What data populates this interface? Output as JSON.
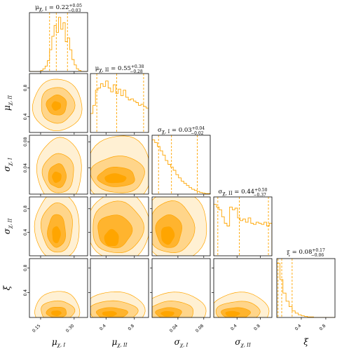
{
  "chart_data": {
    "type": "corner",
    "colors": {
      "line": "#ffa500",
      "fill_levels": [
        "#fff0d3",
        "#ffd58a",
        "#ffb42e",
        "#ffa500"
      ]
    },
    "parameters": [
      {
        "key": "mu1",
        "label": "μχ, I",
        "label_main": "μ",
        "label_sub": "χ, I",
        "title": "μχ, I = 0.22+0.05−0.03",
        "title_main": "μ",
        "title_sub": "χ, I",
        "title_value": " = 0.22",
        "title_plus": "+0.05",
        "title_minus": "−0.03",
        "range": [
          0.1,
          0.36
        ],
        "ticks": [
          0.15,
          0.3
        ],
        "tick_labels": [
          "0.15",
          "0.30"
        ],
        "quantiles": [
          0.19,
          0.22,
          0.27
        ],
        "hist": [
          0,
          0,
          0,
          0,
          0,
          0.02,
          0.05,
          0.1,
          0.2,
          0.4,
          0.65,
          0.85,
          0.72,
          1.0,
          0.78,
          0.9,
          0.55,
          0.62,
          0.4,
          0.22,
          0.12,
          0.05,
          0.02,
          0,
          0,
          0
        ]
      },
      {
        "key": "mu2",
        "label": "μχ, II",
        "label_main": "μ",
        "label_sub": "χ, II",
        "title": "μχ, II = 0.55+0.38−0.28",
        "title_main": "μ",
        "title_sub": "χ, II",
        "title_value": " = 0.55",
        "title_plus": "+0.38",
        "title_minus": "−0.28",
        "range": [
          0.18,
          1.0
        ],
        "ticks": [
          0.4,
          0.8
        ],
        "tick_labels": [
          "0.4",
          "0.8"
        ],
        "quantiles": [
          0.27,
          0.55,
          0.93
        ],
        "hist": [
          0.35,
          0.5,
          0.78,
          0.82,
          0.9,
          0.85,
          0.95,
          0.82,
          0.75,
          0.88,
          0.72,
          0.8,
          0.68,
          0.78,
          0.65,
          0.6,
          0.62,
          0.58,
          0.55,
          0.5,
          0.52,
          0.48,
          0.45
        ]
      },
      {
        "key": "s1",
        "label": "σχ, I",
        "label_main": "σ",
        "label_sub": "χ, I",
        "title": "σχ, I = 0.03+0.04−0.02",
        "title_main": "σ",
        "title_sub": "χ, I",
        "title_value": " = 0.03",
        "title_plus": "+0.04",
        "title_minus": "−0.02",
        "range": [
          0.0,
          0.09
        ],
        "ticks": [
          0.04,
          0.08
        ],
        "tick_labels": [
          "0.04",
          "0.08"
        ],
        "quantiles": [
          0.01,
          0.03,
          0.07
        ],
        "hist": [
          1.0,
          0.95,
          0.88,
          0.8,
          0.72,
          0.62,
          0.55,
          0.5,
          0.44,
          0.36,
          0.3,
          0.24,
          0.2,
          0.16,
          0.12,
          0.09,
          0.07,
          0.05,
          0.03,
          0.02,
          0.01,
          0.01
        ]
      },
      {
        "key": "s2",
        "label": "σχ, II",
        "label_main": "σ",
        "label_sub": "χ, II",
        "title": "σχ, II = 0.44+0.50−0.37",
        "title_main": "σ",
        "title_sub": "χ, II",
        "title_value": " = 0.44",
        "title_plus": "+0.50",
        "title_minus": "−0.37",
        "range": [
          0.0,
          1.0
        ],
        "ticks": [
          0.4,
          0.8
        ],
        "tick_labels": [
          "0.4",
          "0.8"
        ],
        "quantiles": [
          0.07,
          0.44,
          0.94
        ],
        "hist": [
          0.95,
          0.9,
          0.85,
          0.72,
          0.6,
          0.55,
          0.9,
          0.85,
          0.88,
          0.7,
          0.65,
          0.68,
          0.62,
          0.7,
          0.6,
          0.58,
          0.62,
          0.6,
          0.58,
          0.62,
          0.55,
          0.6
        ]
      },
      {
        "key": "xi",
        "label": "ξ",
        "label_main": "ξ",
        "label_sub": "",
        "title": "ξ = 0.08+0.17−0.06",
        "title_main": "ξ",
        "title_sub": "",
        "title_value": " = 0.08",
        "title_plus": "+0.17",
        "title_minus": "−0.06",
        "range": [
          0.0,
          0.95
        ],
        "ticks": [
          0.4,
          0.8
        ],
        "tick_labels": [
          "0.4",
          "0.8"
        ],
        "quantiles": [
          0.02,
          0.08,
          0.25
        ],
        "hist": [
          1.0,
          0.7,
          0.45,
          0.3,
          0.2,
          0.12,
          0.08,
          0.05,
          0.03,
          0.02,
          0.01,
          0.01,
          0,
          0,
          0,
          0,
          0,
          0,
          0
        ]
      }
    ],
    "contours": {
      "mu2|mu1": [
        [
          0.225,
          0.56,
          0.11,
          0.36,
          1.0
        ],
        [
          0.225,
          0.56,
          0.075,
          0.25,
          2.1
        ],
        [
          0.222,
          0.56,
          0.045,
          0.14,
          3.7
        ],
        [
          0.22,
          0.55,
          0.02,
          0.06,
          6.0
        ]
      ],
      "s1|mu1": [
        [
          0.235,
          0.036,
          0.1,
          0.05,
          1.0
        ],
        [
          0.23,
          0.032,
          0.07,
          0.03,
          2.1
        ],
        [
          0.225,
          0.028,
          0.04,
          0.018,
          3.7
        ],
        [
          0.222,
          0.026,
          0.02,
          0.008,
          6.0
        ]
      ],
      "s1|mu2": [
        [
          0.58,
          0.035,
          0.46,
          0.055,
          1.0
        ],
        [
          0.57,
          0.03,
          0.38,
          0.028,
          2.1
        ],
        [
          0.55,
          0.026,
          0.26,
          0.015,
          3.7
        ],
        [
          0.53,
          0.024,
          0.15,
          0.007,
          6.0
        ]
      ],
      "s2|mu1": [
        [
          0.225,
          0.5,
          0.1,
          0.58,
          1.0
        ],
        [
          0.224,
          0.48,
          0.07,
          0.42,
          2.1
        ],
        [
          0.222,
          0.42,
          0.04,
          0.28,
          3.7
        ],
        [
          0.22,
          0.36,
          0.018,
          0.14,
          6.0
        ]
      ],
      "s2|mu2": [
        [
          0.58,
          0.5,
          0.44,
          0.6,
          1.0
        ],
        [
          0.56,
          0.48,
          0.36,
          0.44,
          2.1
        ],
        [
          0.52,
          0.42,
          0.24,
          0.28,
          3.7
        ],
        [
          0.48,
          0.3,
          0.1,
          0.14,
          6.0
        ]
      ],
      "s2|s1": [
        [
          0.034,
          0.5,
          0.052,
          0.6,
          1.0
        ],
        [
          0.03,
          0.48,
          0.035,
          0.44,
          2.1
        ],
        [
          0.026,
          0.42,
          0.02,
          0.28,
          3.7
        ],
        [
          0.024,
          0.35,
          0.01,
          0.15,
          6.0
        ]
      ],
      "xi|mu1": [
        [
          0.225,
          0.12,
          0.1,
          0.3,
          1.0
        ],
        [
          0.225,
          0.1,
          0.075,
          0.17,
          2.1
        ],
        [
          0.222,
          0.08,
          0.045,
          0.09,
          3.7
        ],
        [
          0.22,
          0.07,
          0.022,
          0.04,
          6.0
        ]
      ],
      "xi|mu2": [
        [
          0.52,
          0.1,
          0.42,
          0.32,
          1.0
        ],
        [
          0.5,
          0.09,
          0.34,
          0.18,
          2.1
        ],
        [
          0.48,
          0.07,
          0.22,
          0.09,
          3.7
        ],
        [
          0.45,
          0.06,
          0.1,
          0.04,
          6.0
        ]
      ],
      "xi|s1": [
        [
          0.034,
          0.1,
          0.05,
          0.3,
          1.0
        ],
        [
          0.03,
          0.09,
          0.035,
          0.17,
          2.1
        ],
        [
          0.026,
          0.07,
          0.02,
          0.09,
          3.7
        ],
        [
          0.024,
          0.06,
          0.01,
          0.04,
          6.0
        ]
      ],
      "xi|s2": [
        [
          0.45,
          0.1,
          0.5,
          0.3,
          1.0
        ],
        [
          0.42,
          0.09,
          0.38,
          0.17,
          2.1
        ],
        [
          0.38,
          0.07,
          0.25,
          0.09,
          3.7
        ],
        [
          0.32,
          0.06,
          0.12,
          0.04,
          6.0
        ]
      ]
    }
  }
}
